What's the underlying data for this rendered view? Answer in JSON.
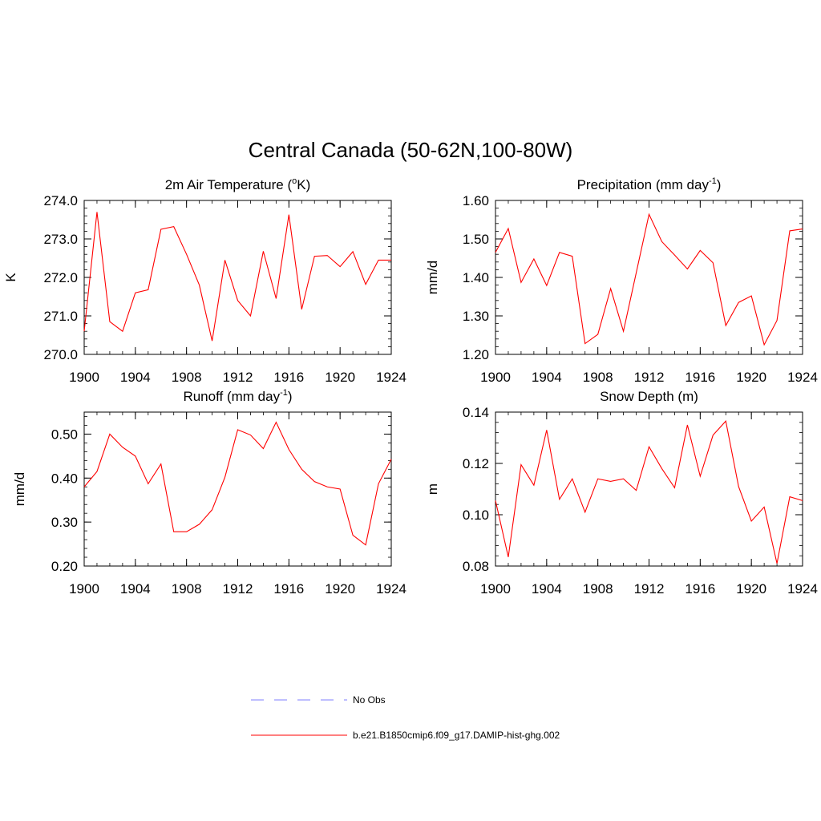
{
  "figure": {
    "title": "Central Canada (50-62N,100-80W)",
    "line_color": "#ff0000",
    "obs_color": "#9999ff"
  },
  "legend": {
    "obs_label": "No Obs",
    "model_label": "b.e21.B1850cmip6.f09_g17.DAMIP-hist-ghg.002",
    "obs_style": "dashed",
    "model_style": "solid"
  },
  "chart_data": [
    {
      "type": "line",
      "title": "2m Air Temperature (",
      "title_sup": "o",
      "title_tail": "K)",
      "ylabel": "K",
      "xlim": [
        1900,
        1924
      ],
      "ylim": [
        270.0,
        274.0
      ],
      "xticks": [
        "1900",
        "1904",
        "1908",
        "1912",
        "1916",
        "1920",
        "1924"
      ],
      "yticks": [
        "270.0",
        "271.0",
        "272.0",
        "273.0",
        "274.0"
      ],
      "x": [
        1900,
        1901,
        1902,
        1903,
        1904,
        1905,
        1906,
        1907,
        1908,
        1909,
        1910,
        1911,
        1912,
        1913,
        1914,
        1915,
        1916,
        1917,
        1918,
        1919,
        1920,
        1921,
        1922,
        1923,
        1924
      ],
      "values": [
        270.6,
        273.7,
        270.85,
        270.6,
        271.6,
        271.68,
        273.25,
        273.32,
        272.6,
        271.8,
        270.35,
        272.45,
        271.4,
        271.0,
        272.68,
        271.45,
        273.63,
        271.17,
        272.55,
        272.57,
        272.28,
        272.67,
        271.82,
        272.45,
        272.45
      ]
    },
    {
      "type": "line",
      "title": "Precipitation (mm day",
      "title_sup": "-1",
      "title_tail": ")",
      "ylabel": "mm/d",
      "xlim": [
        1900,
        1924
      ],
      "ylim": [
        1.2,
        1.6
      ],
      "xticks": [
        "1900",
        "1904",
        "1908",
        "1912",
        "1916",
        "1920",
        "1924"
      ],
      "yticks": [
        "1.20",
        "1.30",
        "1.40",
        "1.50",
        "1.60"
      ],
      "x": [
        1900,
        1901,
        1902,
        1903,
        1904,
        1905,
        1906,
        1907,
        1908,
        1909,
        1910,
        1911,
        1912,
        1913,
        1914,
        1915,
        1916,
        1917,
        1918,
        1919,
        1920,
        1921,
        1922,
        1923,
        1924
      ],
      "values": [
        1.465,
        1.527,
        1.387,
        1.448,
        1.379,
        1.465,
        1.455,
        1.228,
        1.252,
        1.371,
        1.26,
        1.412,
        1.564,
        1.493,
        1.458,
        1.422,
        1.47,
        1.438,
        1.275,
        1.335,
        1.352,
        1.225,
        1.288,
        1.521,
        1.526
      ]
    },
    {
      "type": "line",
      "title": "Runoff (mm day",
      "title_sup": "-1",
      "title_tail": ")",
      "ylabel": "mm/d",
      "xlim": [
        1900,
        1924
      ],
      "ylim": [
        0.2,
        0.55
      ],
      "xticks": [
        "1900",
        "1904",
        "1908",
        "1912",
        "1916",
        "1920",
        "1924"
      ],
      "yticks": [
        "0.20",
        "0.30",
        "0.40",
        "0.50"
      ],
      "x": [
        1900,
        1901,
        1902,
        1903,
        1904,
        1905,
        1906,
        1907,
        1908,
        1909,
        1910,
        1911,
        1912,
        1913,
        1914,
        1915,
        1916,
        1917,
        1918,
        1919,
        1920,
        1921,
        1922,
        1923,
        1924
      ],
      "values": [
        0.38,
        0.415,
        0.5,
        0.47,
        0.45,
        0.387,
        0.432,
        0.278,
        0.278,
        0.295,
        0.328,
        0.402,
        0.51,
        0.498,
        0.467,
        0.527,
        0.465,
        0.42,
        0.392,
        0.38,
        0.375,
        0.27,
        0.248,
        0.387,
        0.443
      ]
    },
    {
      "type": "line",
      "title": "Snow Depth (m)",
      "title_sup": "",
      "title_tail": "",
      "ylabel": "m",
      "xlim": [
        1900,
        1924
      ],
      "ylim": [
        0.08,
        0.14
      ],
      "xticks": [
        "1900",
        "1904",
        "1908",
        "1912",
        "1916",
        "1920",
        "1924"
      ],
      "yticks": [
        "0.08",
        "0.10",
        "0.12",
        "0.14"
      ],
      "x": [
        1900,
        1901,
        1902,
        1903,
        1904,
        1905,
        1906,
        1907,
        1908,
        1909,
        1910,
        1911,
        1912,
        1913,
        1914,
        1915,
        1916,
        1917,
        1918,
        1919,
        1920,
        1921,
        1922,
        1923,
        1924
      ],
      "values": [
        0.1055,
        0.0835,
        0.1195,
        0.1115,
        0.133,
        0.106,
        0.114,
        0.101,
        0.114,
        0.113,
        0.114,
        0.1095,
        0.1265,
        0.118,
        0.1105,
        0.135,
        0.115,
        0.131,
        0.1365,
        0.111,
        0.0975,
        0.103,
        0.081,
        0.107,
        0.1055
      ]
    }
  ]
}
